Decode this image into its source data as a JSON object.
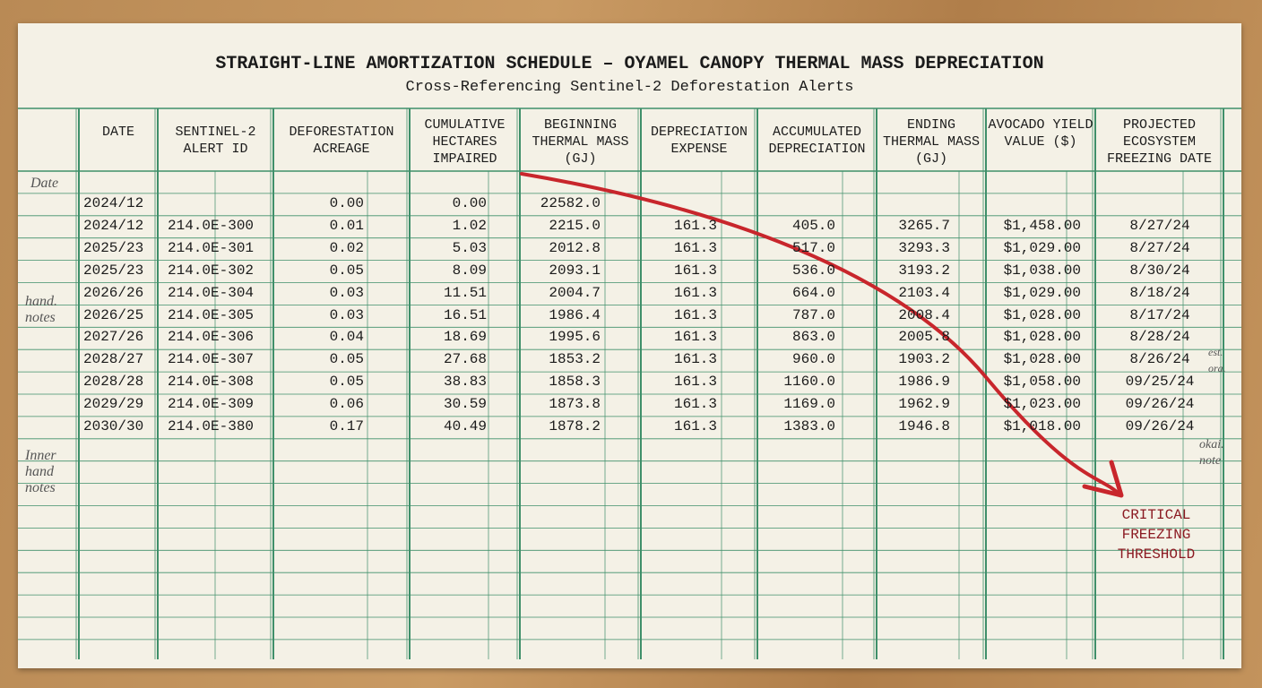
{
  "header": {
    "title": "STRAIGHT-LINE AMORTIZATION SCHEDULE – OYAMEL CANOPY THERMAL MASS DEPRECIATION",
    "subtitle": "Cross-Referencing Sentinel-2 Deforestation Alerts"
  },
  "table": {
    "columns": [
      "DATE",
      "SENTINEL-2 ALERT ID",
      "DEFORESTATION ACREAGE",
      "CUMULATIVE HECTARES IMPAIRED",
      "BEGINNING THERMAL MASS (GJ)",
      "DEPRECIATION EXPENSE",
      "ACCUMULATED DEPRECIATION",
      "ENDING THERMAL MASS (GJ)",
      "AVOCADO YIELD VALUE ($)",
      "PROJECTED ECOSYSTEM FREEZING DATE"
    ],
    "rows": [
      [
        "2024/12",
        null,
        "0.00",
        "0.00",
        "22582.0",
        null,
        null,
        null,
        null,
        null
      ],
      [
        "2024/12",
        "214.0E-300",
        "0.01",
        "1.02",
        "2215.0",
        "161.3",
        "405.0",
        "3265.7",
        "$1,458.00",
        "8/27/24"
      ],
      [
        "2025/23",
        "214.0E-301",
        "0.02",
        "5.03",
        "2012.8",
        "161.3",
        "517.0",
        "3293.3",
        "$1,029.00",
        "8/27/24"
      ],
      [
        "2025/23",
        "214.0E-302",
        "0.05",
        "8.09",
        "2093.1",
        "161.3",
        "536.0",
        "3193.2",
        "$1,038.00",
        "8/30/24"
      ],
      [
        "2026/26",
        "214.0E-304",
        "0.03",
        "11.51",
        "2004.7",
        "161.3",
        "664.0",
        "2103.4",
        "$1,029.00",
        "8/18/24"
      ],
      [
        "2026/25",
        "214.0E-305",
        "0.03",
        "16.51",
        "1986.4",
        "161.3",
        "787.0",
        "2008.4",
        "$1,028.00",
        "8/17/24"
      ],
      [
        "2027/26",
        "214.0E-306",
        "0.04",
        "18.69",
        "1995.6",
        "161.3",
        "863.0",
        "2005.8",
        "$1,028.00",
        "8/28/24"
      ],
      [
        "2028/27",
        "214.0E-307",
        "0.05",
        "27.68",
        "1853.2",
        "161.3",
        "960.0",
        "1903.2",
        "$1,028.00",
        "8/26/24"
      ],
      [
        "2028/28",
        "214.0E-308",
        "0.05",
        "38.83",
        "1858.3",
        "161.3",
        "1160.0",
        "1986.9",
        "$1,058.00",
        "09/25/24"
      ],
      [
        "2029/29",
        "214.0E-309",
        "0.06",
        "30.59",
        "1873.8",
        "161.3",
        "1169.0",
        "1962.9",
        "$1,023.00",
        "09/26/24"
      ],
      [
        "2030/30",
        "214.0E-380",
        "0.17",
        "40.49",
        "1878.2",
        "161.3",
        "1383.0",
        "1946.8",
        "$1,018.00",
        "09/26/24"
      ]
    ]
  },
  "annotation": "CRITICAL FREEZING THRESHOLD",
  "notes": [
    "Date",
    "hand. notes",
    "Inner hand notes",
    "est. ora.",
    "okai. note"
  ]
}
